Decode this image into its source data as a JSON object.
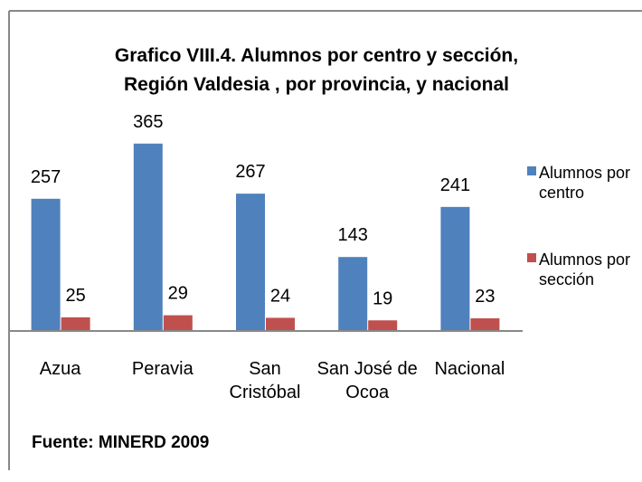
{
  "chart_data": {
    "type": "bar",
    "title": "Grafico VIII.4. Alumnos por centro y sección, Región Valdesia , por provincia, y nacional",
    "categories": [
      "Azua",
      "Peravia",
      "San Cristóbal",
      "San José de Ocoa",
      "Nacional"
    ],
    "series": [
      {
        "name": "Alumnos por centro",
        "color": "#4f81bd",
        "values": [
          257,
          365,
          267,
          143,
          241
        ]
      },
      {
        "name": "Alumnos por sección",
        "color": "#c0504d",
        "values": [
          25,
          29,
          24,
          19,
          23
        ]
      }
    ],
    "source": "Fuente: MINERD 2009"
  }
}
